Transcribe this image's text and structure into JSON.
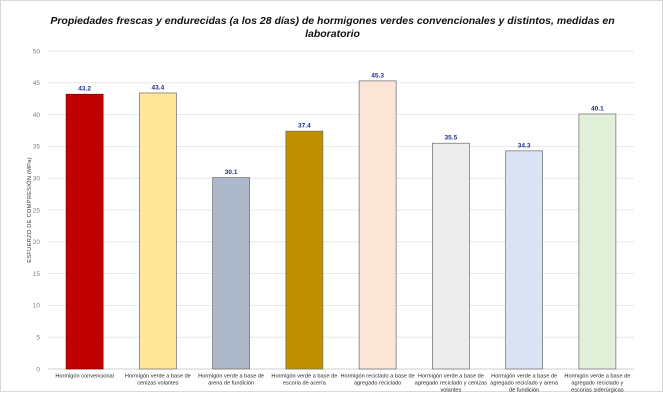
{
  "chart_data": {
    "type": "bar",
    "title": "Propiedades  frescas  y endurecidas  (a los 28 días)  de hormigones verdes convencionales  y distintos,  medidas en laboratorio",
    "ylabel": "ESFUERZO DE COMPRESIÓN (MPa)",
    "xlabel": "",
    "ylim": [
      0,
      50
    ],
    "yticks": [
      0,
      5,
      10,
      15,
      20,
      25,
      30,
      35,
      40,
      45,
      50
    ],
    "grid": true,
    "categories": [
      "Hormigón convencional",
      "Hormigón verde a base de cenizas volantes",
      "Hormigón verde a base de arena de fundición",
      "Hormigón verde a base de escoria de acería",
      "Hormigón reciclado a base de agregado reciclado",
      "Hormigón verde a base de agregado reciclado y cenizas volantes",
      "Hormigón verde a base de agregado reciclado y arena de fundición",
      "Hormigón verde a base de agregado reciclado y escorias siderúrgicas"
    ],
    "values": [
      43.2,
      43.4,
      30.1,
      37.4,
      45.3,
      35.5,
      34.3,
      40.1
    ],
    "value_labels": [
      "43.2",
      "43.4",
      "30.1",
      "37.4",
      "45.3",
      "35.5",
      "34.3",
      "40.1"
    ],
    "colors": [
      "#c00000",
      "#ffe699",
      "#adb9ca",
      "#bf9000",
      "#fbe5d6",
      "#ededed",
      "#dae3f3",
      "#e2f0d9"
    ],
    "edge_colors": [
      "#7f0000",
      "#6b6b6b",
      "#6b6b6b",
      "#6b6b6b",
      "#6b6b6b",
      "#6b6b6b",
      "#6b6b6b",
      "#6b6b6b"
    ]
  }
}
